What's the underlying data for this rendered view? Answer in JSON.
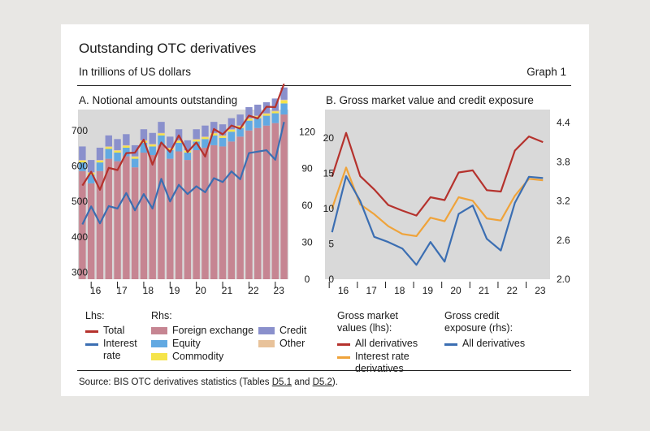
{
  "header": {
    "title": "Outstanding OTC derivatives",
    "subtitle": "In trillions of US dollars",
    "graph_label": "Graph 1"
  },
  "panel_a": {
    "title": "A. Notional amounts outstanding",
    "legend": {
      "lhs_header": "Lhs:",
      "rhs_header": "Rhs:",
      "total": "Total",
      "interest_rate": "Interest rate",
      "foreign_exchange": "Foreign exchange",
      "equity": "Equity",
      "commodity": "Commodity",
      "credit": "Credit",
      "other": "Other"
    }
  },
  "panel_b": {
    "title": "B. Gross market value and credit exposure",
    "legend": {
      "gmv_header": "Gross market values (lhs):",
      "gce_header": "Gross credit exposure (rhs):",
      "all_derivatives": "All derivatives",
      "interest_rate_derivatives": "Interest rate derivatives",
      "all_derivatives_rhs": "All derivatives"
    }
  },
  "source": {
    "prefix": "Source: BIS OTC derivatives statistics (Tables ",
    "table1": "D5.1",
    "middle": " and ",
    "table2": "D5.2",
    "suffix": ")."
  },
  "colors": {
    "total": "#b5322d",
    "interest_rate": "#3b6eb2",
    "fx": "#c68592",
    "equity": "#62a9e2",
    "commodity": "#f5e44a",
    "credit": "#8a90cc",
    "other": "#e8c29a",
    "irs_orange": "#efa33a",
    "panel_bg": "#d9d9d9"
  },
  "chart_data": [
    {
      "type": "bar",
      "title": "A. Notional amounts outstanding",
      "years": [
        "16",
        "17",
        "18",
        "19",
        "20",
        "21",
        "22",
        "23"
      ],
      "lhs": {
        "label": "Lhs",
        "ylim": [
          280,
          760
        ],
        "ticks": [
          300,
          400,
          500,
          600,
          700
        ],
        "series": [
          {
            "name": "Total",
            "values": [
              545,
              584,
              533,
              595,
              589,
              637,
              638,
              675,
              604,
              667,
              640,
              687,
              640,
              667,
              627,
              705,
              690,
              715,
              706,
              743,
              735,
              768,
              767,
              833
            ]
          },
          {
            "name": "Interest rate",
            "values": [
              435,
              486,
              438,
              487,
              480,
              524,
              475,
              521,
              480,
              564,
              500,
              547,
              521,
              543,
              526,
              566,
              555,
              585,
              563,
              637,
              641,
              645,
              618,
              725
            ]
          }
        ]
      },
      "rhs": {
        "label": "Rhs",
        "ylim": [
          0,
          138
        ],
        "ticks": [
          0,
          30,
          60,
          90,
          120
        ],
        "stack_order": [
          "Foreign exchange",
          "Equity",
          "Commodity",
          "Other",
          "Credit"
        ],
        "series": [
          {
            "name": "Foreign exchange",
            "values": [
              88,
              78,
              88,
              98,
              96,
              100,
              91,
              103,
              101,
              109,
              98,
              104,
              97,
              105,
              107,
              109,
              108,
              112,
              116,
              121,
              123,
              125,
              127,
              134
            ]
          },
          {
            "name": "Equity",
            "values": [
              7,
              7,
              7,
              8,
              7,
              7,
              7,
              8,
              7,
              8,
              7,
              7,
              6,
              7,
              7,
              8,
              7,
              8,
              7,
              8,
              8,
              8,
              8,
              9
            ]
          },
          {
            "name": "Commodity",
            "values": [
              1.5,
              1.5,
              1.5,
              1.5,
              1.5,
              1.5,
              1.5,
              1.5,
              1.5,
              1.5,
              1.5,
              1.5,
              1.5,
              1.5,
              1.5,
              1.5,
              1.5,
              1.5,
              1.5,
              1.5,
              1.5,
              1.5,
              1.5,
              2.5
            ]
          },
          {
            "name": "Other",
            "values": [
              0.5,
              0.5,
              0.5,
              0.5,
              0.5,
              0.5,
              0.5,
              0.5,
              0.5,
              0.5,
              0.5,
              0.5,
              0.5,
              0.5,
              0.5,
              0.5,
              0.5,
              0.5,
              0.5,
              0.5,
              0.5,
              0.5,
              0.5,
              0.5
            ]
          },
          {
            "name": "Credit",
            "values": [
              11,
              10,
              10,
              9,
              9,
              9,
              9,
              9,
              9,
              9,
              9,
              9,
              8,
              8,
              9,
              9,
              9,
              9,
              9,
              9,
              9,
              9,
              10,
              10
            ]
          }
        ]
      }
    },
    {
      "type": "line",
      "title": "B. Gross market value and credit exposure",
      "years": [
        "16",
        "17",
        "18",
        "19",
        "20",
        "21",
        "22",
        "23"
      ],
      "lhs": {
        "ylim": [
          0,
          24
        ],
        "ticks": [
          0,
          5,
          10,
          15,
          20
        ],
        "series": [
          {
            "name": "All derivatives",
            "values": [
              14.5,
              20.7,
              14.6,
              12.7,
              10.5,
              9.7,
              9.0,
              11.6,
              11.2,
              15.1,
              15.4,
              12.6,
              12.4,
              18.2,
              20.2,
              19.4
            ]
          },
          {
            "name": "Interest rate derivatives",
            "values": [
              10.0,
              15.8,
              10.6,
              9.2,
              7.5,
              6.4,
              6.1,
              8.7,
              8.2,
              11.6,
              11.1,
              8.6,
              8.3,
              11.8,
              14.2,
              14.0
            ]
          }
        ]
      },
      "rhs": {
        "ylim": [
          2.0,
          4.6
        ],
        "ticks": [
          2.0,
          2.6,
          3.2,
          3.8,
          4.4
        ],
        "series": [
          {
            "name": "All derivatives",
            "values": [
              2.72,
              3.58,
              3.2,
              2.65,
              2.57,
              2.47,
              2.22,
              2.57,
              2.27,
              3.0,
              3.13,
              2.62,
              2.44,
              3.17,
              3.57,
              3.55
            ]
          }
        ]
      }
    }
  ]
}
